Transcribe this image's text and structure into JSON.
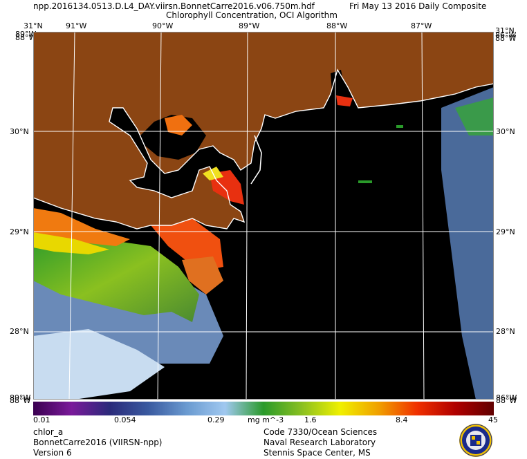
{
  "header": {
    "filename": "npp.2016134.0513.D.L4_DAY.viirsn.BonnetCarre2016.v06.750m.hdf",
    "date": "Fri May 13 2016 Daily Composite",
    "product": "Chlorophyll Concentration, OCI Algorithm"
  },
  "map": {
    "colors": {
      "land": "#8B4513",
      "water_no_data": "#000000",
      "coastline": "#ffffff",
      "grid": "#ffffff"
    },
    "top_labels": [
      "31°N",
      "91°W",
      "90°W",
      "89°W",
      "88°W",
      "87°W",
      "31°N"
    ],
    "corner_stack": {
      "top": "88°W",
      "bottom": "88°W",
      "left_top": "89°W",
      "right_top": "86°W"
    },
    "left_lat_labels": [
      "30°N",
      "29°N",
      "28°N"
    ],
    "right_lat_labels": [
      "30°N",
      "29°N",
      "28°N"
    ],
    "bottom_stack": {
      "left_a": "89°W",
      "left_b": "88°W",
      "right_a": "86°W",
      "right_b": "88°W"
    }
  },
  "colorbar": {
    "ticks": [
      "0.01",
      "0.054",
      "0.29",
      "1.6",
      "8.4",
      "45"
    ],
    "unit": "mg m^-3",
    "gradient": [
      "#3a0050",
      "#7a1a9a",
      "#2a2a7a",
      "#3a5aa0",
      "#6a9ad0",
      "#a0c8f0",
      "#2a9a2a",
      "#8ac020",
      "#f0f000",
      "#f0a000",
      "#f03000",
      "#b00000",
      "#600000"
    ]
  },
  "footer": {
    "left": [
      "chlor_a",
      "BonnetCarre2016 (VIIRSN-npp)",
      "Version 6"
    ],
    "right": [
      "Code 7330/Ocean Sciences",
      "Naval Research Laboratory",
      "Stennis Space Center, MS"
    ]
  },
  "logo": {
    "icon": "nrl-seal-icon"
  }
}
